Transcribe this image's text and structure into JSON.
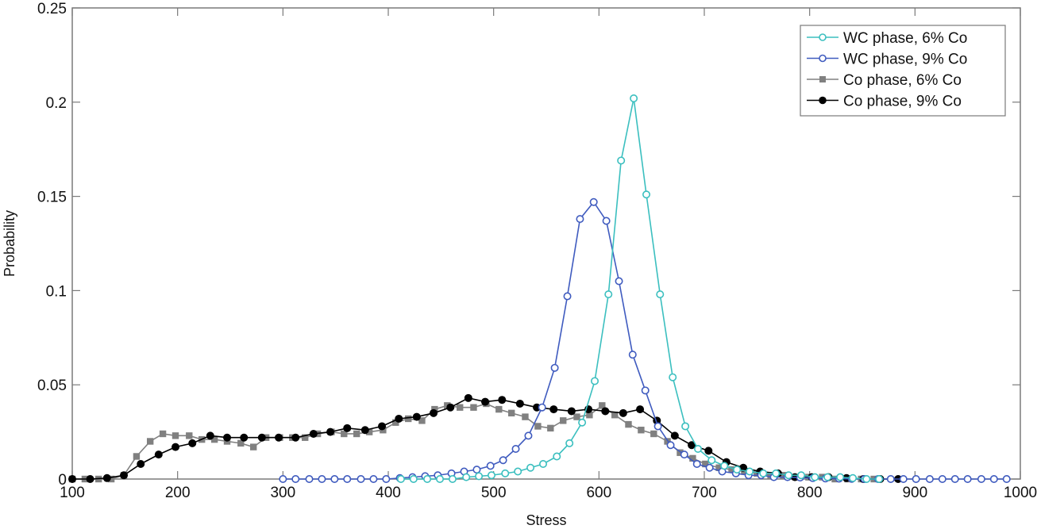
{
  "chart_data": {
    "type": "line",
    "title": "",
    "xlabel": "Stress",
    "ylabel": "Probability",
    "xlim": [
      100,
      1000
    ],
    "ylim": [
      0,
      0.25
    ],
    "xticks": [
      100,
      200,
      300,
      400,
      500,
      600,
      700,
      800,
      900,
      1000
    ],
    "yticks": [
      0,
      0.05,
      0.1,
      0.15,
      0.2,
      0.25
    ],
    "ytick_labels": [
      "0",
      "0.05",
      "0.1",
      "0.15",
      "0.2",
      "0.25"
    ],
    "grid": false,
    "legend_position": "upper right",
    "series": [
      {
        "name": "WC phase, 6% Co",
        "color": "#3bbfbf",
        "marker": "open-square-circle",
        "x": [
          412,
          424,
          437,
          449,
          461,
          474,
          486,
          498,
          511,
          523,
          535,
          547,
          560,
          572,
          584,
          596,
          609,
          621,
          633,
          645,
          658,
          670,
          682,
          694,
          707,
          719,
          731,
          743,
          756,
          768,
          780,
          792,
          805,
          817,
          829,
          841,
          854,
          866
        ],
        "y": [
          0,
          0,
          0,
          0,
          0,
          0.001,
          0.0015,
          0.002,
          0.003,
          0.004,
          0.006,
          0.008,
          0.012,
          0.019,
          0.03,
          0.052,
          0.098,
          0.169,
          0.202,
          0.151,
          0.098,
          0.054,
          0.028,
          0.016,
          0.01,
          0.007,
          0.005,
          0.004,
          0.003,
          0.003,
          0.002,
          0.002,
          0.001,
          0.001,
          0.001,
          0.0005,
          0,
          0
        ]
      },
      {
        "name": "WC phase, 9% Co",
        "color": "#3f5bbf",
        "marker": "open-circle",
        "x": [
          300,
          312,
          325,
          337,
          349,
          361,
          374,
          386,
          398,
          411,
          423,
          435,
          447,
          460,
          472,
          484,
          497,
          509,
          521,
          533,
          546,
          558,
          570,
          582,
          595,
          607,
          619,
          632,
          644,
          656,
          668,
          681,
          693,
          705,
          717,
          730,
          742,
          754,
          766,
          779,
          791,
          803,
          815,
          828,
          840,
          852,
          865,
          877,
          889,
          901,
          914,
          926,
          938,
          950,
          963,
          975,
          987
        ],
        "y": [
          0,
          0,
          0,
          0,
          0,
          0,
          0,
          0,
          0,
          0.0005,
          0.001,
          0.0015,
          0.002,
          0.003,
          0.004,
          0.005,
          0.007,
          0.01,
          0.016,
          0.023,
          0.038,
          0.059,
          0.097,
          0.138,
          0.147,
          0.137,
          0.105,
          0.066,
          0.047,
          0.028,
          0.018,
          0.013,
          0.008,
          0.006,
          0.004,
          0.003,
          0.002,
          0.002,
          0.001,
          0.001,
          0.0008,
          0.0005,
          0.0003,
          0.0002,
          0.0001,
          0,
          0,
          0,
          0,
          0,
          0,
          0,
          0,
          0,
          0,
          0,
          0
        ]
      },
      {
        "name": "Co phase, 6% Co",
        "color": "#808080",
        "marker": "filled-square",
        "x": [
          100,
          112,
          125,
          137,
          149,
          161,
          174,
          186,
          198,
          211,
          223,
          235,
          247,
          260,
          272,
          284,
          297,
          309,
          321,
          333,
          346,
          358,
          370,
          382,
          395,
          407,
          419,
          432,
          444,
          456,
          468,
          481,
          493,
          505,
          517,
          530,
          542,
          554,
          566,
          579,
          591,
          603,
          615,
          628,
          640,
          652,
          665,
          677,
          689,
          701,
          714,
          726,
          738,
          750,
          763,
          775,
          787,
          799,
          812,
          824,
          836,
          849,
          861
        ],
        "y": [
          0,
          0,
          0,
          0,
          0.002,
          0.012,
          0.02,
          0.024,
          0.023,
          0.023,
          0.021,
          0.021,
          0.02,
          0.019,
          0.017,
          0.022,
          0.022,
          0.022,
          0.022,
          0.024,
          0.025,
          0.024,
          0.024,
          0.025,
          0.026,
          0.03,
          0.032,
          0.031,
          0.037,
          0.039,
          0.038,
          0.038,
          0.04,
          0.037,
          0.035,
          0.033,
          0.028,
          0.027,
          0.031,
          0.033,
          0.034,
          0.039,
          0.034,
          0.029,
          0.026,
          0.024,
          0.02,
          0.014,
          0.011,
          0.008,
          0.006,
          0.005,
          0.004,
          0.003,
          0.002,
          0.002,
          0.001,
          0.001,
          0.001,
          0,
          0,
          0,
          0
        ]
      },
      {
        "name": "Co phase, 9% Co",
        "color": "#000000",
        "marker": "filled-circle",
        "x": [
          100,
          117,
          133,
          149,
          165,
          182,
          198,
          214,
          231,
          247,
          263,
          280,
          296,
          312,
          329,
          345,
          361,
          378,
          394,
          410,
          427,
          443,
          459,
          476,
          492,
          508,
          525,
          541,
          557,
          574,
          590,
          606,
          623,
          639,
          655,
          672,
          688,
          704,
          721,
          737,
          753,
          770,
          786,
          802,
          818,
          835,
          851,
          867,
          884
        ],
        "y": [
          0,
          0,
          0.0005,
          0.002,
          0.008,
          0.013,
          0.017,
          0.019,
          0.023,
          0.022,
          0.022,
          0.022,
          0.022,
          0.022,
          0.024,
          0.025,
          0.027,
          0.026,
          0.028,
          0.032,
          0.033,
          0.035,
          0.038,
          0.043,
          0.041,
          0.042,
          0.04,
          0.038,
          0.037,
          0.036,
          0.037,
          0.036,
          0.035,
          0.037,
          0.031,
          0.023,
          0.018,
          0.015,
          0.009,
          0.006,
          0.004,
          0.003,
          0.001,
          0.001,
          0.001,
          0.0005,
          0,
          0,
          0
        ]
      }
    ]
  }
}
